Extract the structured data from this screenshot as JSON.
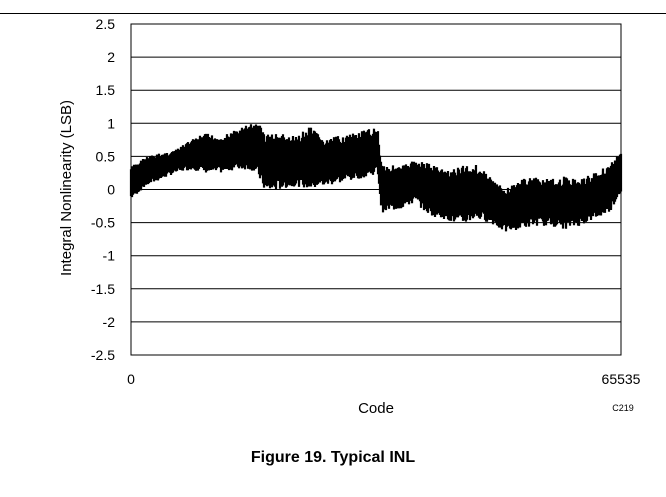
{
  "figure": {
    "caption": "Figure 19. Typical INL",
    "tag": "C219"
  },
  "chart_data": {
    "type": "line",
    "title": "",
    "xlabel": "Code",
    "ylabel": "Integral Nonlinearity (LSB)",
    "xlim": [
      0,
      65535
    ],
    "ylim": [
      -2.5,
      2.5
    ],
    "x_ticks": [
      0,
      65535
    ],
    "x_tick_labels": [
      "0",
      "65535"
    ],
    "y_ticks": [
      2.5,
      2,
      1.5,
      1,
      0.5,
      0,
      -0.5,
      -1,
      -1.5,
      -2,
      -2.5
    ],
    "y_tick_labels": [
      "2.5",
      "2",
      "1.5",
      "1",
      "0.5",
      "0",
      "-0.5",
      "-1",
      "-1.5",
      "-2",
      "-2.5"
    ],
    "grid": "horizontal",
    "series": [
      {
        "color": "#000000",
        "envelope_upper": [
          [
            0,
            0.35
          ],
          [
            2000,
            0.5
          ],
          [
            4000,
            0.55
          ],
          [
            6000,
            0.6
          ],
          [
            8000,
            0.75
          ],
          [
            10000,
            0.85
          ],
          [
            12000,
            0.8
          ],
          [
            14000,
            0.9
          ],
          [
            16000,
            1.0
          ],
          [
            17000,
            1.02
          ],
          [
            18000,
            0.85
          ],
          [
            20000,
            0.85
          ],
          [
            22000,
            0.8
          ],
          [
            24000,
            0.95
          ],
          [
            26000,
            0.75
          ],
          [
            28000,
            0.82
          ],
          [
            30000,
            0.85
          ],
          [
            32000,
            0.92
          ],
          [
            33000,
            0.95
          ],
          [
            33500,
            0.4
          ],
          [
            36000,
            0.35
          ],
          [
            38000,
            0.45
          ],
          [
            40000,
            0.4
          ],
          [
            42000,
            0.3
          ],
          [
            44000,
            0.35
          ],
          [
            46000,
            0.4
          ],
          [
            48000,
            0.2
          ],
          [
            50000,
            0.0
          ],
          [
            52000,
            0.15
          ],
          [
            54000,
            0.2
          ],
          [
            56000,
            0.15
          ],
          [
            58000,
            0.2
          ],
          [
            60000,
            0.15
          ],
          [
            62000,
            0.25
          ],
          [
            64000,
            0.4
          ],
          [
            65535,
            0.55
          ]
        ],
        "envelope_lower": [
          [
            0,
            -0.15
          ],
          [
            2000,
            0.05
          ],
          [
            4000,
            0.15
          ],
          [
            6000,
            0.25
          ],
          [
            8000,
            0.3
          ],
          [
            10000,
            0.25
          ],
          [
            12000,
            0.25
          ],
          [
            14000,
            0.3
          ],
          [
            16000,
            0.3
          ],
          [
            17000,
            0.2
          ],
          [
            18000,
            -0.05
          ],
          [
            20000,
            0.0
          ],
          [
            22000,
            0.05
          ],
          [
            24000,
            0.0
          ],
          [
            26000,
            0.05
          ],
          [
            28000,
            0.1
          ],
          [
            30000,
            0.15
          ],
          [
            32000,
            0.2
          ],
          [
            33000,
            0.25
          ],
          [
            33500,
            -0.35
          ],
          [
            36000,
            -0.3
          ],
          [
            38000,
            -0.2
          ],
          [
            40000,
            -0.4
          ],
          [
            42000,
            -0.45
          ],
          [
            44000,
            -0.55
          ],
          [
            46000,
            -0.45
          ],
          [
            48000,
            -0.5
          ],
          [
            50000,
            -0.65
          ],
          [
            52000,
            -0.6
          ],
          [
            54000,
            -0.55
          ],
          [
            56000,
            -0.55
          ],
          [
            58000,
            -0.6
          ],
          [
            60000,
            -0.55
          ],
          [
            62000,
            -0.45
          ],
          [
            64000,
            -0.35
          ],
          [
            65535,
            -0.05
          ]
        ]
      }
    ]
  }
}
